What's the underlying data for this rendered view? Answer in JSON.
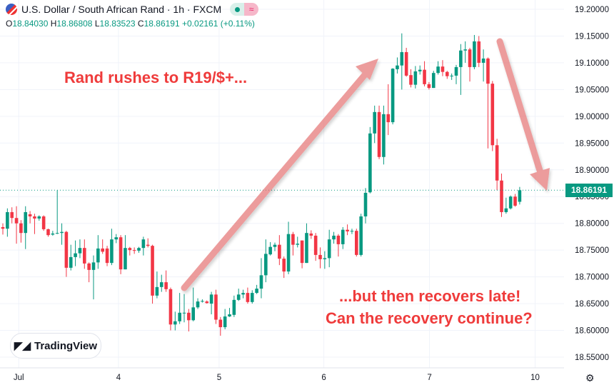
{
  "header": {
    "title": "U.S. Dollar / South African Rand · 1h · FXCM",
    "icon": "usd-zar-flag-icon",
    "ohlc": {
      "o_label": "O",
      "o": "18.84030",
      "h_label": "H",
      "h": "18.86808",
      "l_label": "L",
      "l": "18.83523",
      "c_label": "C",
      "c": "18.86191",
      "change": "+0.02161 (+0.11%)"
    }
  },
  "annotations": {
    "top": "Rand rushes to R19/$+...",
    "bottom_line1": "...but then recovers late!",
    "bottom_line2": "Can the recovery continue?"
  },
  "logo": {
    "text": "TradingView"
  },
  "price_label": "18.86191",
  "colors": {
    "up": "#089981",
    "down": "#f23645",
    "annotation": "#ef3b3b",
    "arrow": "#e57373"
  },
  "chart_data": {
    "type": "candlestick",
    "ylim": [
      18.55,
      19.2
    ],
    "y_ticks": [
      "19.20000",
      "19.15000",
      "19.10000",
      "19.05000",
      "19.00000",
      "18.95000",
      "18.90000",
      "18.85000",
      "18.80000",
      "18.75000",
      "18.70000",
      "18.65000",
      "18.60000",
      "18.55000"
    ],
    "x_ticks": [
      {
        "label": "Jul",
        "index": 3.5
      },
      {
        "label": "4",
        "index": 25.5
      },
      {
        "label": "5",
        "index": 47.7
      },
      {
        "label": "6",
        "index": 70.8
      },
      {
        "label": "7",
        "index": 94.1
      },
      {
        "label": "10",
        "index": 117.4
      }
    ],
    "last_price": 18.86191,
    "grid": true,
    "ohlc": [
      [
        18.793,
        18.8,
        18.779,
        18.79
      ],
      [
        18.79,
        18.828,
        18.775,
        18.821
      ],
      [
        18.821,
        18.83,
        18.8,
        18.81
      ],
      [
        18.81,
        18.832,
        18.762,
        18.8
      ],
      [
        18.8,
        18.806,
        18.764,
        18.782
      ],
      [
        18.782,
        18.832,
        18.752,
        18.821
      ],
      [
        18.817,
        18.823,
        18.8,
        18.813
      ],
      [
        18.813,
        18.818,
        18.78,
        18.809
      ],
      [
        18.809,
        18.815,
        18.805,
        18.813
      ],
      [
        18.813,
        18.815,
        18.786,
        18.789
      ],
      [
        18.789,
        18.79,
        18.775,
        18.778
      ],
      [
        18.779,
        18.786,
        18.777,
        18.781
      ],
      [
        18.781,
        18.862,
        18.78,
        18.782
      ],
      [
        18.782,
        18.8,
        18.76,
        18.784
      ],
      [
        18.784,
        18.786,
        18.7,
        18.717
      ],
      [
        18.717,
        18.76,
        18.712,
        18.737
      ],
      [
        18.737,
        18.768,
        18.72,
        18.744
      ],
      [
        18.744,
        18.77,
        18.735,
        18.754
      ],
      [
        18.754,
        18.77,
        18.715,
        18.725
      ],
      [
        18.725,
        18.727,
        18.69,
        18.713
      ],
      [
        18.713,
        18.74,
        18.658,
        18.727
      ],
      [
        18.727,
        18.778,
        18.715,
        18.753
      ],
      [
        18.753,
        18.77,
        18.743,
        18.747
      ],
      [
        18.753,
        18.758,
        18.72,
        18.726
      ],
      [
        18.726,
        18.79,
        18.722,
        18.77
      ],
      [
        18.77,
        18.78,
        18.763,
        18.774
      ],
      [
        18.774,
        18.778,
        18.705,
        18.714
      ],
      [
        18.714,
        18.778,
        18.714,
        18.754
      ],
      [
        18.754,
        18.756,
        18.74,
        18.75
      ],
      [
        18.75,
        18.755,
        18.743,
        18.749
      ],
      [
        18.749,
        18.756,
        18.745,
        18.754
      ],
      [
        18.754,
        18.775,
        18.74,
        18.77
      ],
      [
        18.76,
        18.772,
        18.755,
        18.758
      ],
      [
        18.758,
        18.76,
        18.65,
        18.665
      ],
      [
        18.665,
        18.71,
        18.66,
        18.681
      ],
      [
        18.681,
        18.704,
        18.672,
        18.69
      ],
      [
        18.69,
        18.712,
        18.672,
        18.677
      ],
      [
        18.677,
        18.68,
        18.6,
        18.611
      ],
      [
        18.611,
        18.635,
        18.6,
        18.617
      ],
      [
        18.617,
        18.67,
        18.612,
        18.633
      ],
      [
        18.633,
        18.668,
        18.615,
        18.633
      ],
      [
        18.633,
        18.64,
        18.598,
        18.619
      ],
      [
        18.619,
        18.68,
        18.617,
        18.643
      ],
      [
        18.643,
        18.66,
        18.64,
        18.654
      ],
      [
        18.654,
        18.658,
        18.652,
        18.655
      ],
      [
        18.654,
        18.656,
        18.65,
        18.651
      ],
      [
        18.65,
        18.672,
        18.63,
        18.667
      ],
      [
        18.667,
        18.676,
        18.612,
        18.62
      ],
      [
        18.62,
        18.625,
        18.59,
        18.606
      ],
      [
        18.606,
        18.64,
        18.602,
        18.626
      ],
      [
        18.626,
        18.642,
        18.625,
        18.63
      ],
      [
        18.629,
        18.665,
        18.625,
        18.657
      ],
      [
        18.657,
        18.678,
        18.655,
        18.667
      ],
      [
        18.667,
        18.676,
        18.66,
        18.67
      ],
      [
        18.67,
        18.68,
        18.65,
        18.653
      ],
      [
        18.653,
        18.675,
        18.65,
        18.67
      ],
      [
        18.67,
        18.685,
        18.668,
        18.678
      ],
      [
        18.678,
        18.735,
        18.66,
        18.703
      ],
      [
        18.703,
        18.77,
        18.69,
        18.743
      ],
      [
        18.742,
        18.765,
        18.74,
        18.756
      ],
      [
        18.756,
        18.764,
        18.748,
        18.76
      ],
      [
        18.76,
        18.778,
        18.722,
        18.734
      ],
      [
        18.734,
        18.738,
        18.698,
        18.71
      ],
      [
        18.71,
        18.803,
        18.705,
        18.78
      ],
      [
        18.78,
        18.784,
        18.74,
        18.76
      ],
      [
        18.76,
        18.775,
        18.755,
        18.762
      ],
      [
        18.768,
        18.768,
        18.716,
        18.726
      ],
      [
        18.726,
        18.8,
        18.726,
        18.782
      ],
      [
        18.781,
        18.787,
        18.771,
        18.777
      ],
      [
        18.777,
        18.782,
        18.73,
        18.741
      ],
      [
        18.741,
        18.755,
        18.716,
        18.733
      ],
      [
        18.733,
        18.748,
        18.715,
        18.735
      ],
      [
        18.735,
        18.788,
        18.718,
        18.77
      ],
      [
        18.77,
        18.784,
        18.762,
        18.777
      ],
      [
        18.777,
        18.78,
        18.738,
        18.761
      ],
      [
        18.761,
        18.793,
        18.752,
        18.788
      ],
      [
        18.788,
        18.798,
        18.778,
        18.785
      ],
      [
        18.785,
        18.79,
        18.78,
        18.786
      ],
      [
        18.786,
        18.79,
        18.738,
        18.741
      ],
      [
        18.741,
        18.818,
        18.738,
        18.813
      ],
      [
        18.813,
        18.866,
        18.8,
        18.857
      ],
      [
        18.858,
        18.98,
        18.856,
        18.968
      ],
      [
        18.968,
        19.02,
        18.95,
        19.008
      ],
      [
        19.008,
        19.02,
        18.92,
        18.924
      ],
      [
        18.924,
        19.02,
        18.91,
        19.004
      ],
      [
        19.004,
        19.06,
        18.965,
        18.989
      ],
      [
        18.989,
        19.09,
        18.985,
        19.089
      ],
      [
        19.088,
        19.11,
        19.08,
        19.095
      ],
      [
        19.095,
        19.155,
        19.05,
        19.12
      ],
      [
        19.12,
        19.128,
        19.074,
        19.076
      ],
      [
        19.077,
        19.088,
        19.054,
        19.059
      ],
      [
        19.059,
        19.094,
        19.052,
        19.084
      ],
      [
        19.084,
        19.095,
        19.078,
        19.087
      ],
      [
        19.087,
        19.103,
        19.056,
        19.06
      ],
      [
        19.06,
        19.064,
        19.05,
        19.053
      ],
      [
        19.053,
        19.085,
        19.053,
        19.081
      ],
      [
        19.081,
        19.103,
        19.078,
        19.093
      ],
      [
        19.093,
        19.105,
        19.075,
        19.083
      ],
      [
        19.083,
        19.085,
        19.07,
        19.075
      ],
      [
        19.075,
        19.08,
        19.068,
        19.076
      ],
      [
        19.076,
        19.096,
        19.06,
        19.092
      ],
      [
        19.092,
        19.135,
        19.04,
        19.123
      ],
      [
        19.123,
        19.14,
        19.1,
        19.125
      ],
      [
        19.125,
        19.128,
        19.065,
        19.092
      ],
      [
        19.092,
        19.152,
        19.088,
        19.14
      ],
      [
        19.14,
        19.15,
        19.092,
        19.1
      ],
      [
        19.1,
        19.125,
        19.065,
        19.108
      ],
      [
        19.108,
        19.11,
        18.94,
        19.061
      ],
      [
        19.061,
        19.066,
        18.935,
        18.946
      ],
      [
        18.946,
        18.958,
        18.862,
        18.88
      ],
      [
        18.88,
        18.893,
        18.812,
        18.821
      ],
      [
        18.821,
        18.848,
        18.818,
        18.828
      ],
      [
        18.828,
        18.852,
        18.826,
        18.85
      ],
      [
        18.85,
        18.855,
        18.831,
        18.833
      ],
      [
        18.8403,
        18.86808,
        18.83523,
        18.86191
      ]
    ]
  }
}
